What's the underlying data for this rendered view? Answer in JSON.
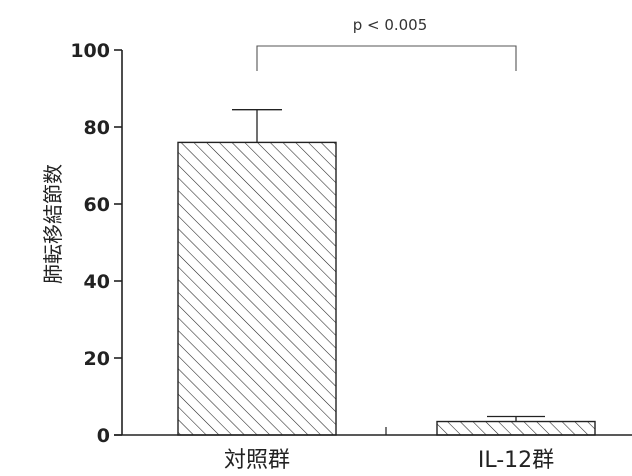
{
  "chart_data": {
    "type": "bar",
    "categories": [
      "対照群",
      "IL-12群"
    ],
    "values": [
      76,
      3.5
    ],
    "error_upper": [
      84.5,
      4.8
    ],
    "ylabel": "肺転移結節数",
    "xlabel": "",
    "title": "",
    "ylim": [
      0,
      100
    ],
    "yticks": [
      "0",
      "20",
      "40",
      "60",
      "80",
      "100"
    ],
    "bar_fill": "diagonal-hatch",
    "grid": false,
    "significance": {
      "label": "p < 0.005",
      "between": [
        "対照群",
        "IL-12群"
      ]
    },
    "colors": {
      "ink": "#222222",
      "bar_fill": "#ffffff"
    }
  }
}
